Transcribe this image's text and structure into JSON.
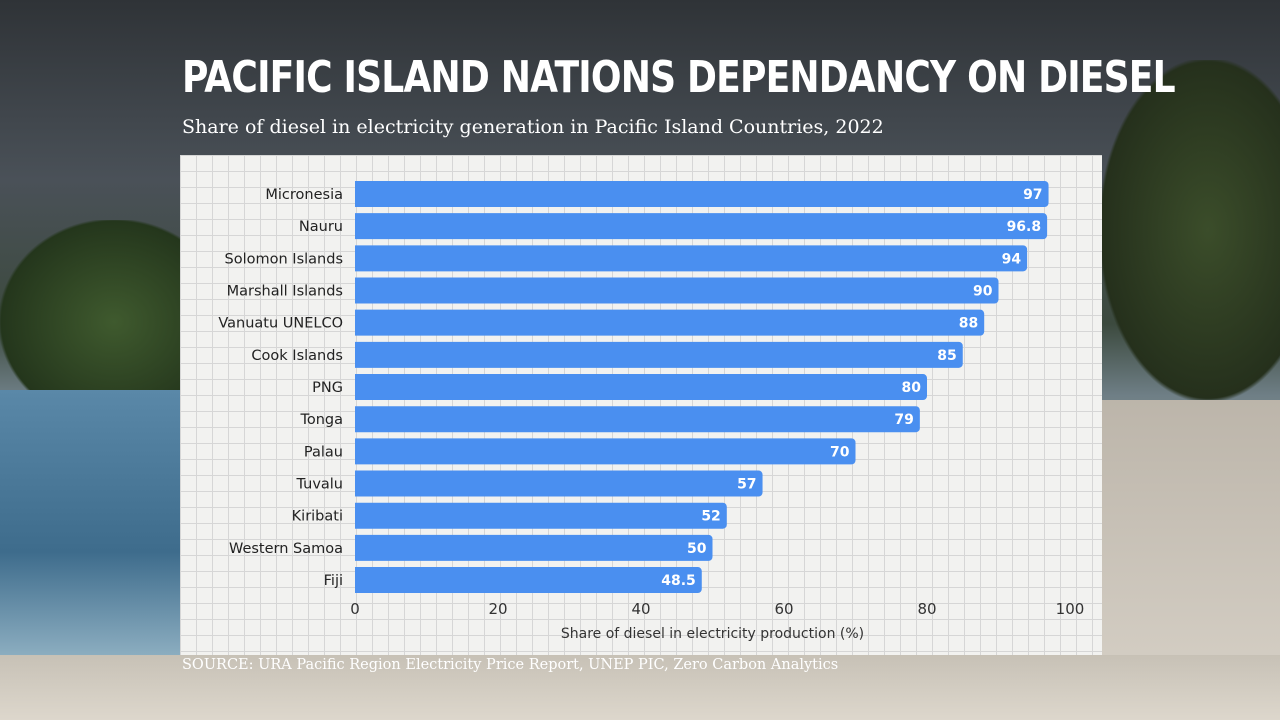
{
  "title": "PACIFIC ISLAND NATIONS DEPENDANCY ON DIESEL",
  "subtitle": "Share of diesel in electricity generation in Pacific Island Countries, 2022",
  "source": "SOURCE: URA Pacific Region Electricity Price Report, UNEP PIC, Zero Carbon Analytics",
  "colors": {
    "bar": "#4a8ff0",
    "text": "#222222"
  },
  "chart_data": {
    "type": "bar",
    "orientation": "horizontal",
    "categories": [
      "Micronesia",
      "Nauru",
      "Solomon Islands",
      "Marshall Islands",
      "Vanuatu UNELCO",
      "Cook Islands",
      "PNG",
      "Tonga",
      "Palau",
      "Tuvalu",
      "Kiribati",
      "Western Samoa",
      "Fiji"
    ],
    "values": [
      97,
      96.8,
      94,
      90,
      88,
      85,
      80,
      79,
      70,
      57,
      52,
      50,
      48.5
    ],
    "xlabel": "Share of diesel in electricity production (%)",
    "xlim": [
      0,
      100
    ],
    "xticks": [
      0,
      20,
      40,
      60,
      80,
      100
    ],
    "grid": true
  }
}
